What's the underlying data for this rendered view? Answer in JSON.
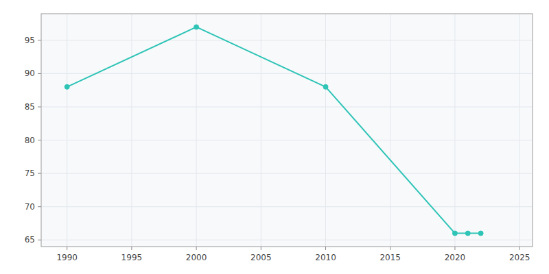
{
  "chart_data": {
    "type": "line",
    "x": [
      1990,
      2000,
      2010,
      2020,
      2021,
      2022
    ],
    "values": [
      88,
      97,
      88,
      66,
      66,
      66
    ],
    "color": "#2ec4b6",
    "marker": "circle",
    "xlim": [
      1988,
      2026
    ],
    "ylim": [
      64,
      99
    ],
    "xticks": [
      1990,
      1995,
      2000,
      2005,
      2010,
      2015,
      2020,
      2025
    ],
    "yticks": [
      65,
      70,
      75,
      80,
      85,
      90,
      95
    ],
    "grid": true
  }
}
